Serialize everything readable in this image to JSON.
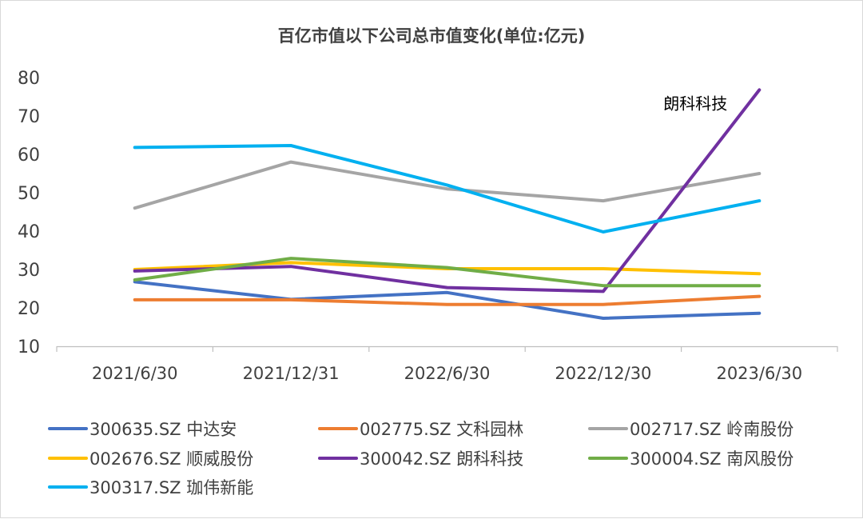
{
  "chart_data": {
    "type": "line",
    "title": "百亿市值以下公司总市值变化(单位:亿元)",
    "xlabel": "",
    "ylabel": "",
    "categories": [
      "2021/6/30",
      "2021/12/31",
      "2022/6/30",
      "2022/12/30",
      "2023/6/30"
    ],
    "ylim": [
      10,
      80
    ],
    "yticks": [
      10,
      20,
      30,
      40,
      50,
      60,
      70,
      80
    ],
    "grid": false,
    "legend_position": "bottom",
    "series": [
      {
        "name": "300635.SZ 中达安",
        "color": "#4472C4",
        "values": [
          26.8,
          22.2,
          24.0,
          17.3,
          18.6
        ]
      },
      {
        "name": "002775.SZ 文科园林",
        "color": "#ED7D31",
        "values": [
          22.1,
          22.1,
          20.9,
          20.9,
          23.0
        ]
      },
      {
        "name": "002717.SZ 岭南股份",
        "color": "#A5A5A5",
        "values": [
          46.0,
          58.0,
          51.0,
          47.9,
          55.0
        ]
      },
      {
        "name": "002676.SZ 顺威股份",
        "color": "#FFC000",
        "values": [
          30.0,
          31.8,
          30.2,
          30.2,
          28.9
        ]
      },
      {
        "name": "300042.SZ 朗科科技",
        "color": "#7030A0",
        "values": [
          29.6,
          30.8,
          25.3,
          24.3,
          76.8
        ]
      },
      {
        "name": "300004.SZ 南风股份",
        "color": "#70AD47",
        "values": [
          27.3,
          32.9,
          30.5,
          25.8,
          25.8
        ]
      },
      {
        "name": "300317.SZ 珈伟新能",
        "color": "#00B0F0",
        "values": [
          61.8,
          62.3,
          52.0,
          39.8,
          47.9
        ]
      }
    ],
    "annotations": [
      {
        "text": "朗科科技",
        "series": "300042.SZ 朗科科技"
      }
    ]
  }
}
